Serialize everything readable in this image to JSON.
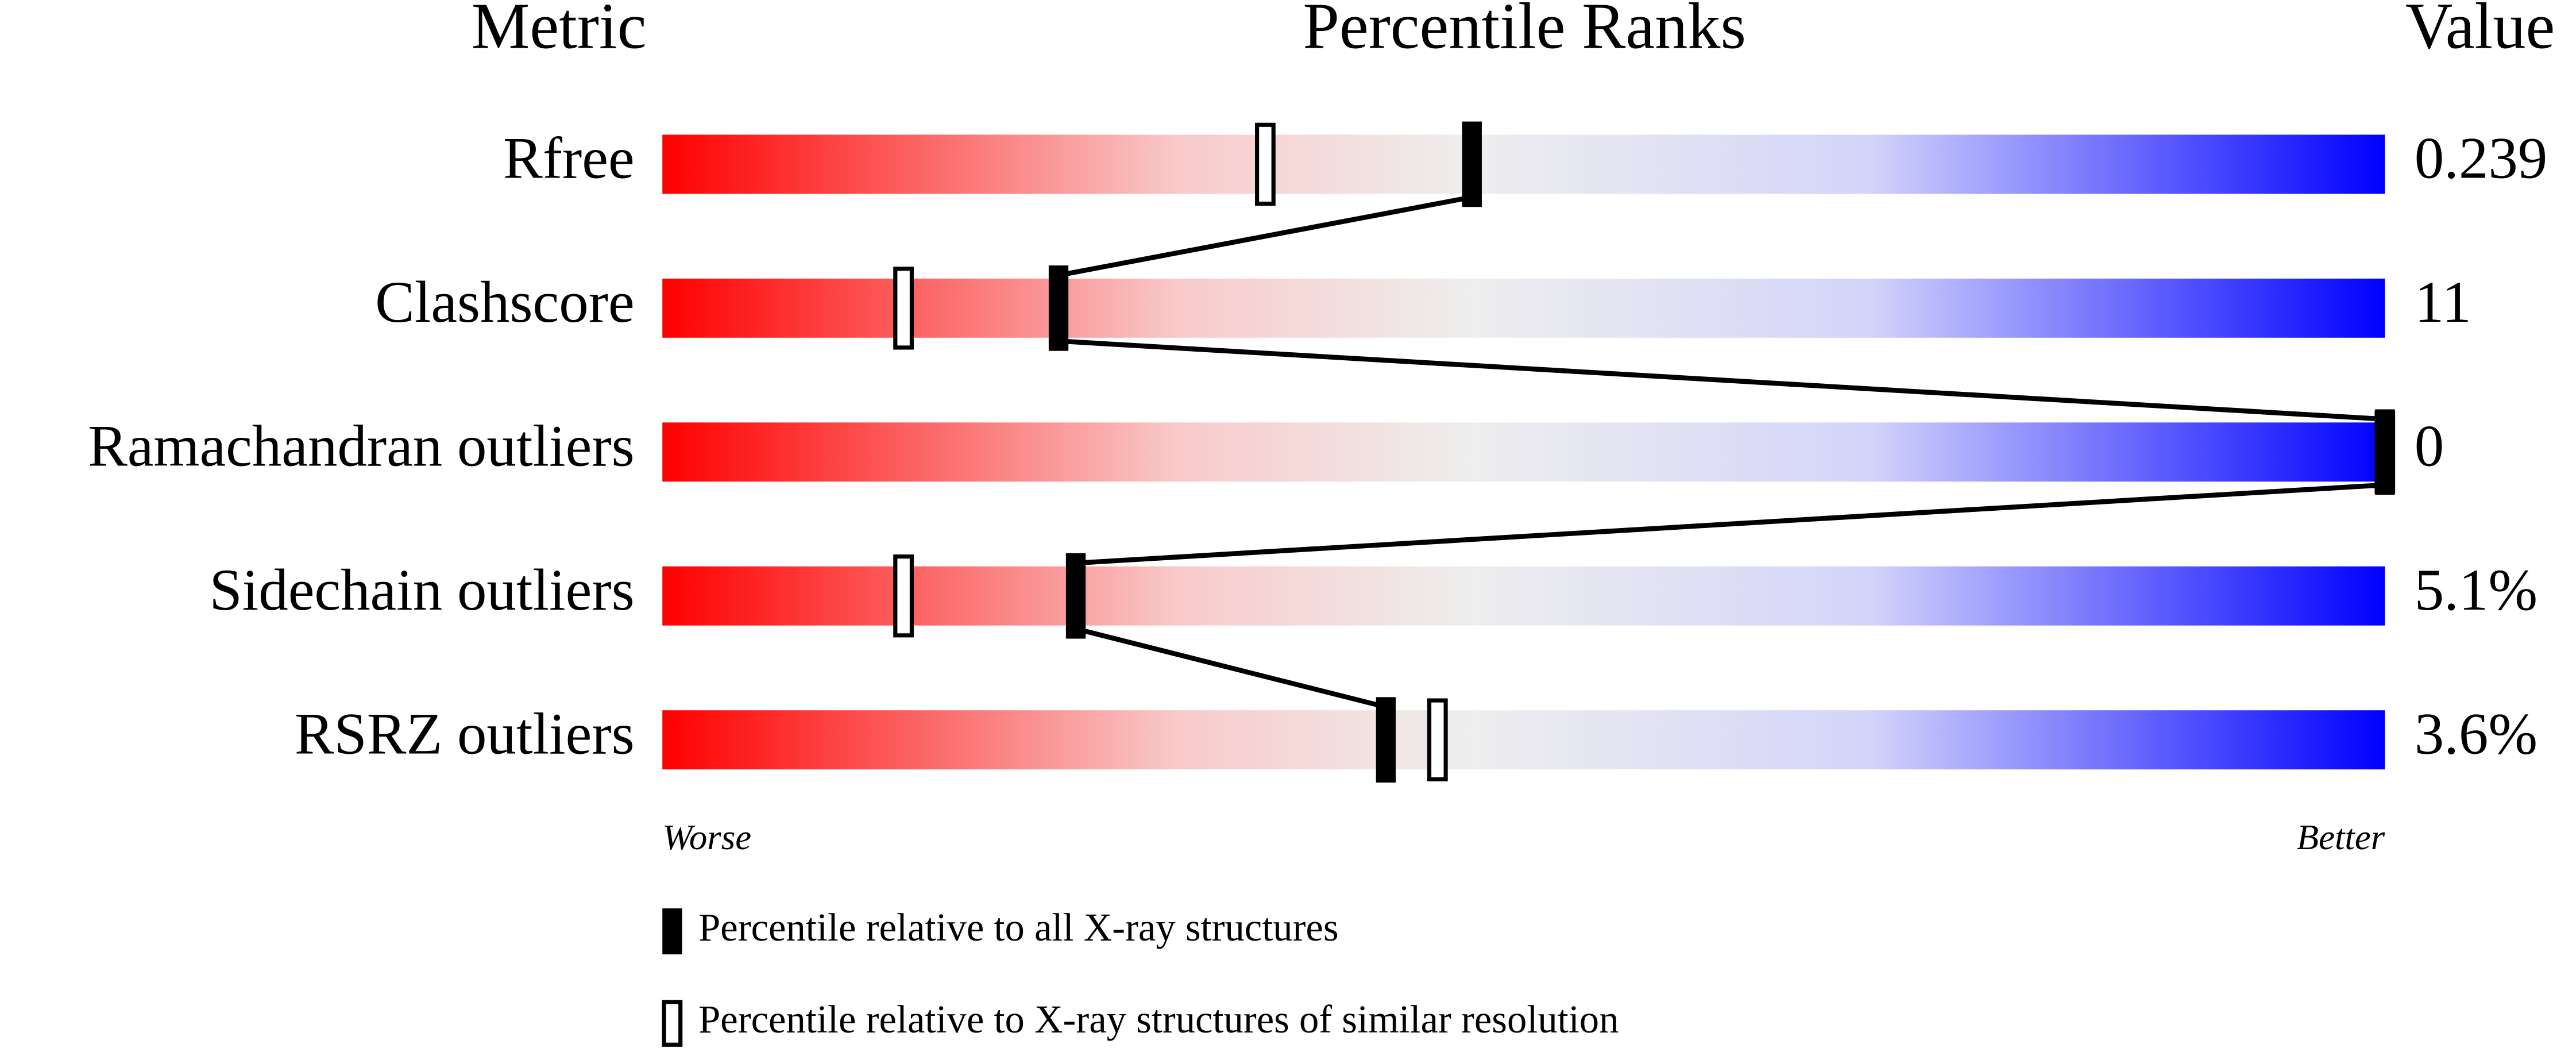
{
  "chart_data": {
    "type": "percentile",
    "headers": [
      "Metric",
      "Percentile Ranks",
      "Value"
    ],
    "categories": [
      "Rfree",
      "Clashscore",
      "Ramachandran outliers",
      "Sidechain outliers",
      "RSRZ outliers"
    ],
    "value_column": [
      "0.239",
      "11",
      "0",
      "5.1%",
      "3.6%"
    ],
    "xlim": [
      0,
      100
    ],
    "x_axis_labels": [
      "Worse",
      "Better"
    ],
    "series": [
      {
        "name": "Percentile relative to all X-ray structures",
        "color": "#000000",
        "values": [
          47,
          23,
          100,
          24,
          42
        ]
      },
      {
        "name": "Percentile relative to X-ray structures of similar resolution",
        "color": "#ffffff",
        "values": [
          35,
          14,
          100,
          14,
          45
        ]
      }
    ]
  }
}
